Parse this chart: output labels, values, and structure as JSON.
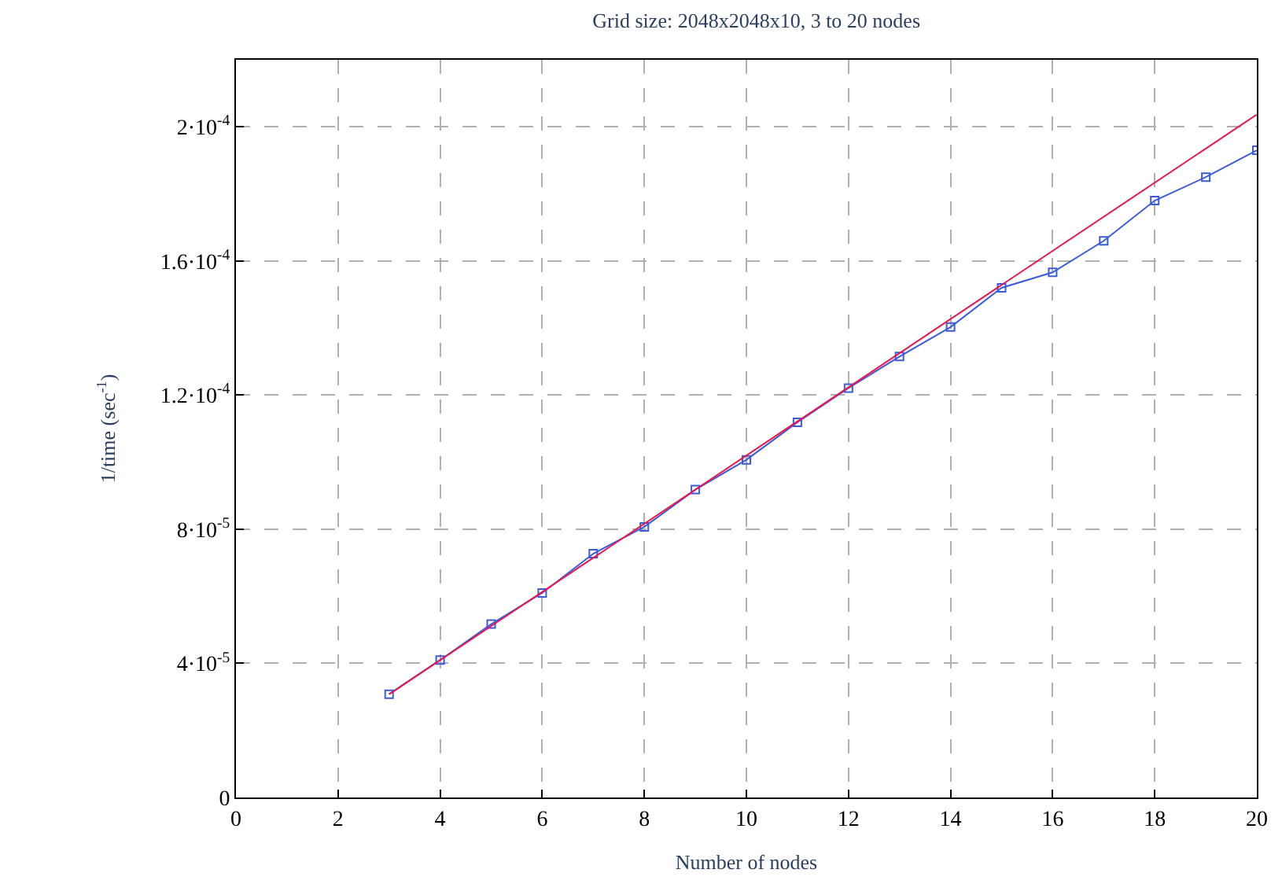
{
  "chart_data": {
    "type": "line",
    "title": "Grid size: 2048x2048x10, 3 to 20 nodes",
    "xlabel": "Number of nodes",
    "ylabel": "1/time (sec$^{-1}$)",
    "x": [
      3,
      4,
      5,
      6,
      7,
      8,
      9,
      10,
      11,
      12,
      13,
      14,
      15,
      16,
      17,
      18,
      19,
      20
    ],
    "series": [
      {
        "color": "#3b5bdb",
        "marker": "square",
        "values": [
          3.08e-05,
          4.1e-05,
          5.17e-05,
          6.1e-05,
          7.27e-05,
          8.07e-05,
          9.18e-05,
          0.0001007,
          0.0001119,
          0.0001221,
          0.0001315,
          0.0001403,
          0.000152,
          0.0001566,
          0.000166,
          0.000178,
          0.000185,
          0.000193
        ]
      },
      {
        "color": "#e8174f",
        "marker": "none",
        "x": [
          3,
          20
        ],
        "values": [
          3.08e-05,
          0.0002037
        ]
      }
    ],
    "xlim": [
      0,
      20
    ],
    "xticks": [
      0,
      2,
      4,
      6,
      8,
      10,
      12,
      14,
      16,
      18,
      20
    ],
    "ylim": [
      0,
      0.00022
    ],
    "yticks": [
      0,
      {
        "value": 4e-05,
        "label": "4·10$^{-5}$"
      },
      {
        "value": 8e-05,
        "label": "8·10$^{-5}$"
      },
      {
        "value": 0.00012,
        "label": "1.2·10$^{-4}$"
      },
      {
        "value": 0.00016,
        "label": "1.6·10$^{-4}$"
      },
      {
        "value": 0.0002,
        "label": "2·10$^{-4}$"
      }
    ],
    "grid": true,
    "legend": false,
    "line_style": "solid"
  }
}
